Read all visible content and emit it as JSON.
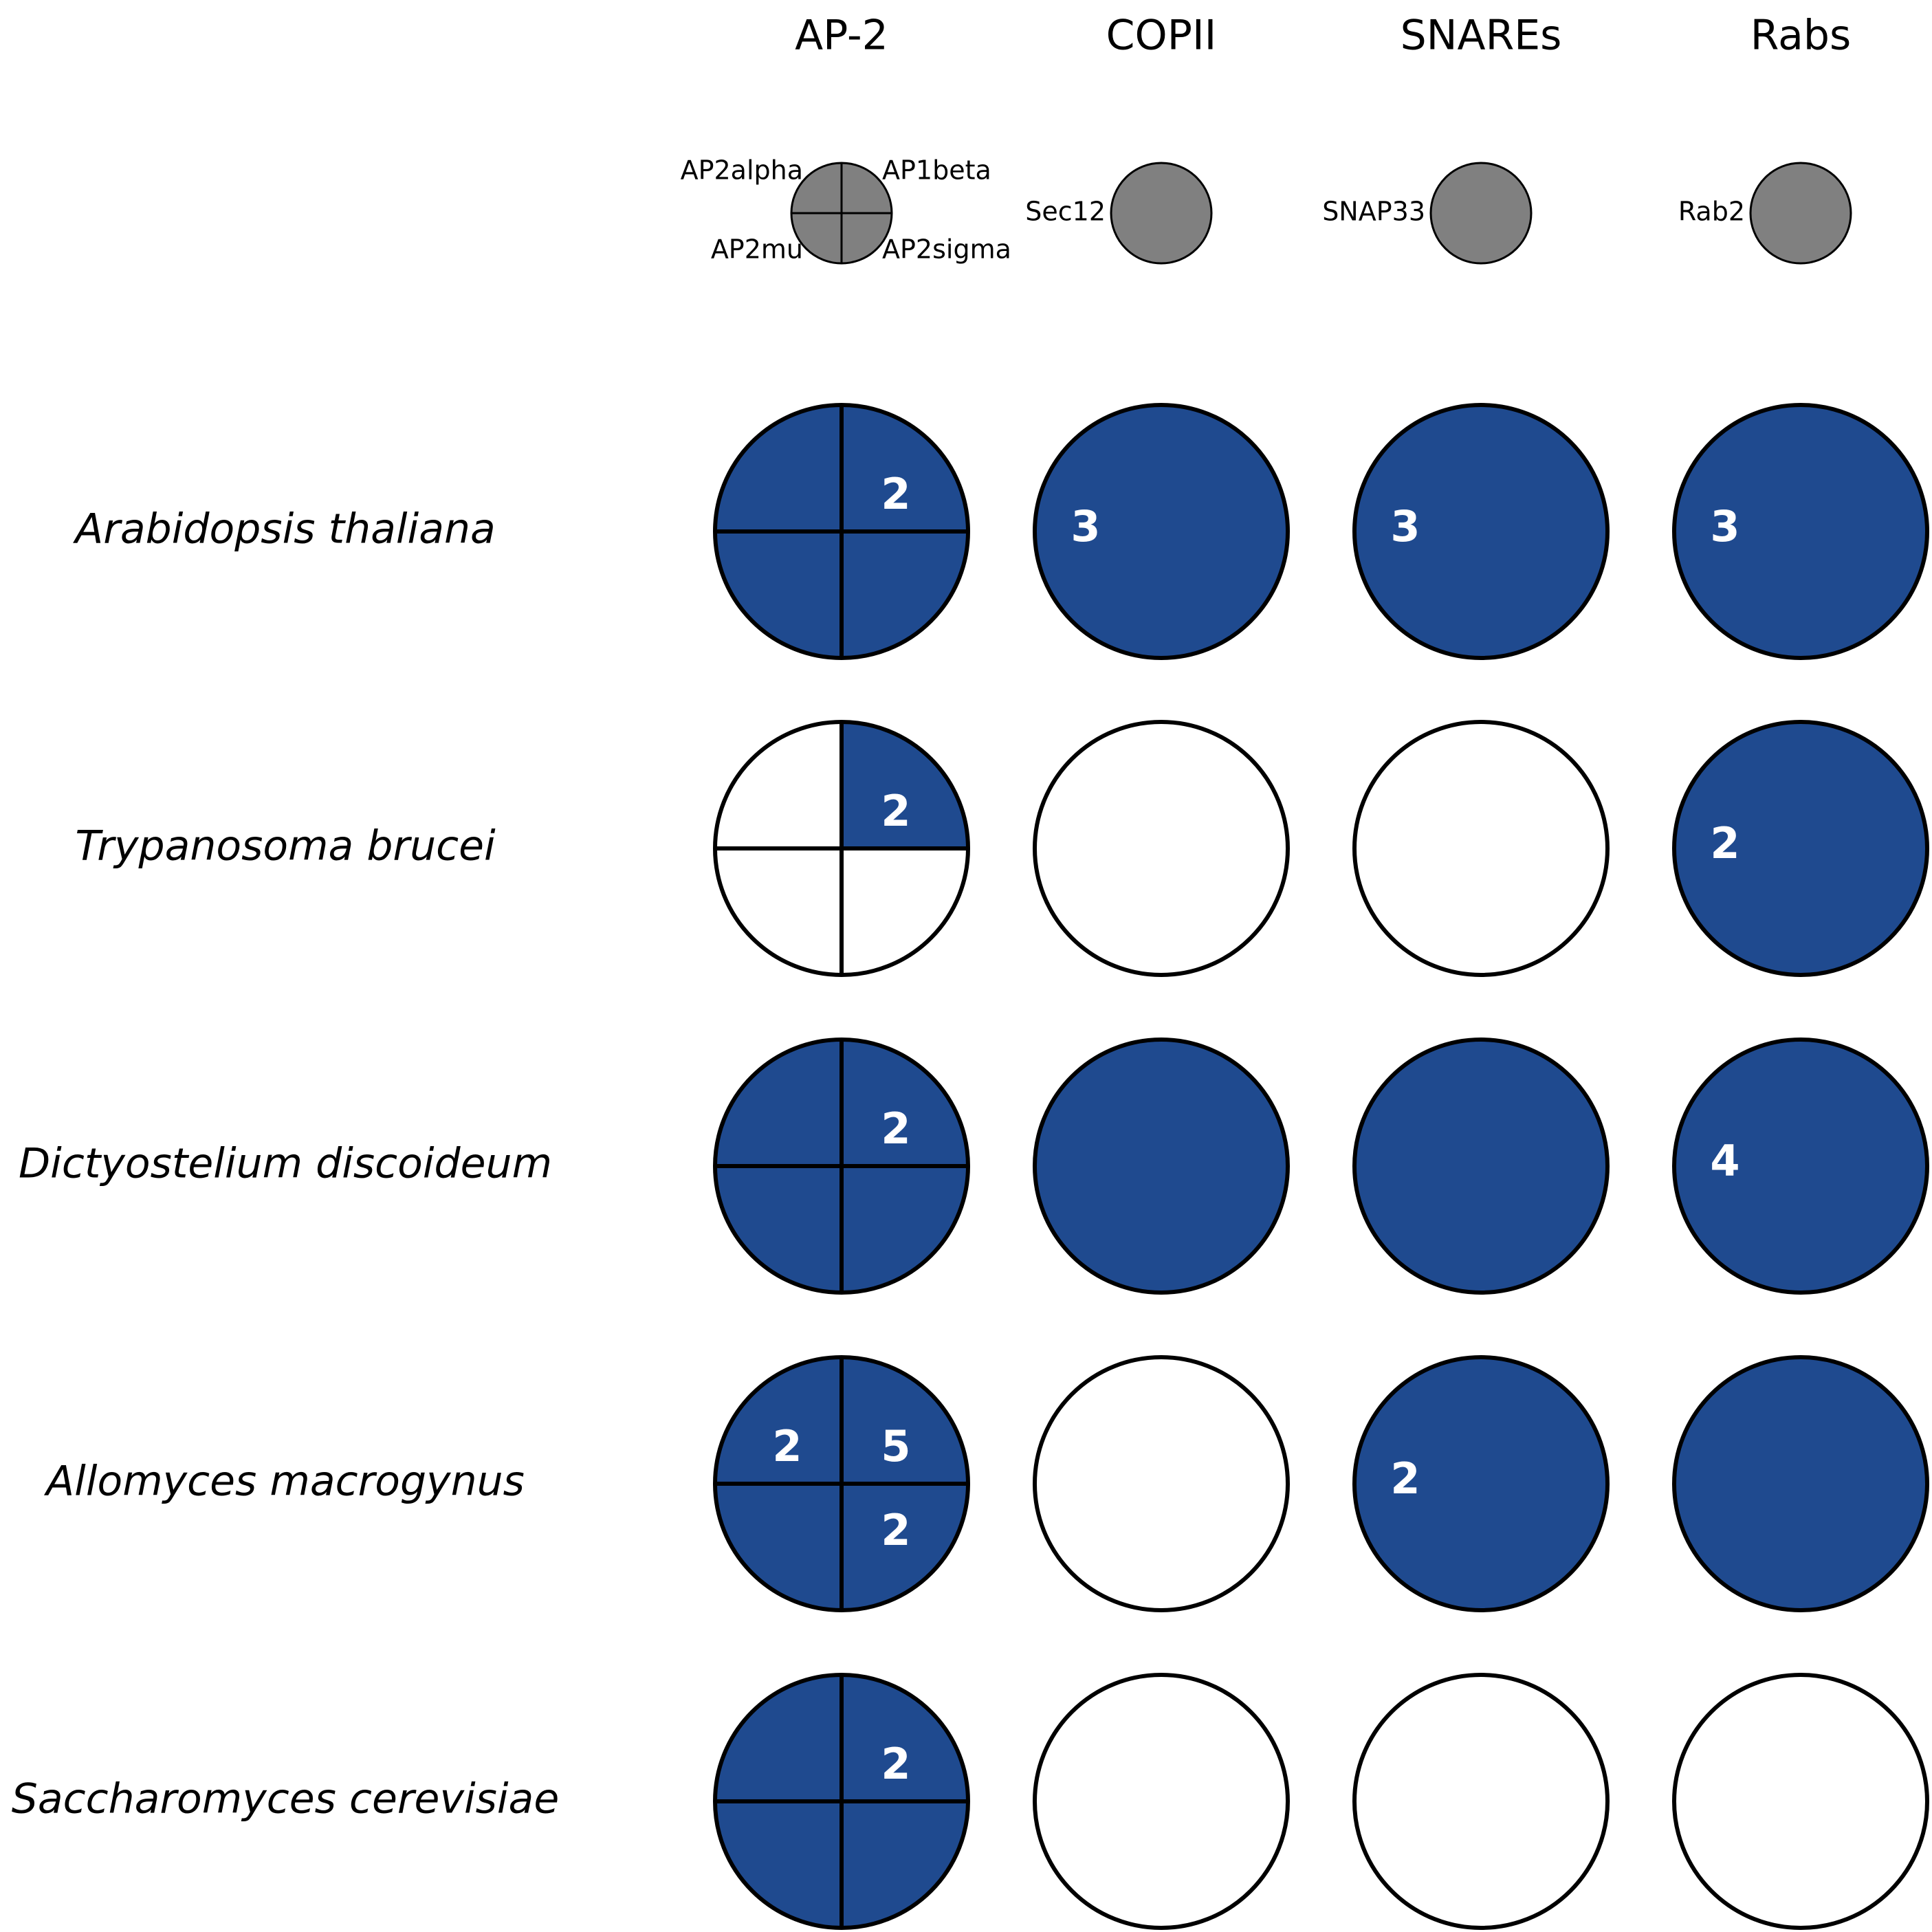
{
  "colors": {
    "present": "#1f4a8f",
    "absent": "#ffffff",
    "legend_fill": "#808080",
    "stroke": "#000000",
    "count_text": "#ffffff"
  },
  "columns": [
    {
      "title": "AP-2",
      "type": "quartered",
      "legend_subunits": [
        "AP2alpha",
        "AP1beta",
        "AP2mu",
        "AP2sigma"
      ]
    },
    {
      "title": "COPII",
      "type": "single",
      "legend_label": "Sec12"
    },
    {
      "title": "SNAREs",
      "type": "single",
      "legend_label": "SNAP33"
    },
    {
      "title": "Rabs",
      "type": "single",
      "legend_label": "Rab2"
    }
  ],
  "subunit_order": [
    "top-left",
    "top-right",
    "bottom-left",
    "bottom-right"
  ],
  "rows": [
    {
      "species": "Arabidopsis thaliana",
      "cells": [
        {
          "quadrants": [
            {
              "present": true,
              "count": ""
            },
            {
              "present": true,
              "count": "2"
            },
            {
              "present": true,
              "count": ""
            },
            {
              "present": true,
              "count": ""
            }
          ]
        },
        {
          "present": true,
          "count": "3"
        },
        {
          "present": true,
          "count": "3"
        },
        {
          "present": true,
          "count": "3"
        }
      ]
    },
    {
      "species": "Trypanosoma brucei",
      "cells": [
        {
          "quadrants": [
            {
              "present": false,
              "count": ""
            },
            {
              "present": true,
              "count": "2"
            },
            {
              "present": false,
              "count": ""
            },
            {
              "present": false,
              "count": ""
            }
          ]
        },
        {
          "present": false,
          "count": ""
        },
        {
          "present": false,
          "count": ""
        },
        {
          "present": true,
          "count": "2"
        }
      ]
    },
    {
      "species": "Dictyostelium discoideum",
      "cells": [
        {
          "quadrants": [
            {
              "present": true,
              "count": ""
            },
            {
              "present": true,
              "count": "2"
            },
            {
              "present": true,
              "count": ""
            },
            {
              "present": true,
              "count": ""
            }
          ]
        },
        {
          "present": true,
          "count": ""
        },
        {
          "present": true,
          "count": ""
        },
        {
          "present": true,
          "count": "4"
        }
      ]
    },
    {
      "species": "Allomyces macrogynus",
      "cells": [
        {
          "quadrants": [
            {
              "present": true,
              "count": "2"
            },
            {
              "present": true,
              "count": "5"
            },
            {
              "present": true,
              "count": ""
            },
            {
              "present": true,
              "count": "2"
            }
          ]
        },
        {
          "present": false,
          "count": ""
        },
        {
          "present": true,
          "count": "2"
        },
        {
          "present": true,
          "count": ""
        }
      ]
    },
    {
      "species": "Saccharomyces cerevisiae",
      "cells": [
        {
          "quadrants": [
            {
              "present": true,
              "count": ""
            },
            {
              "present": true,
              "count": "2"
            },
            {
              "present": true,
              "count": ""
            },
            {
              "present": true,
              "count": ""
            }
          ]
        },
        {
          "present": false,
          "count": ""
        },
        {
          "present": false,
          "count": ""
        },
        {
          "present": false,
          "count": ""
        }
      ]
    }
  ]
}
